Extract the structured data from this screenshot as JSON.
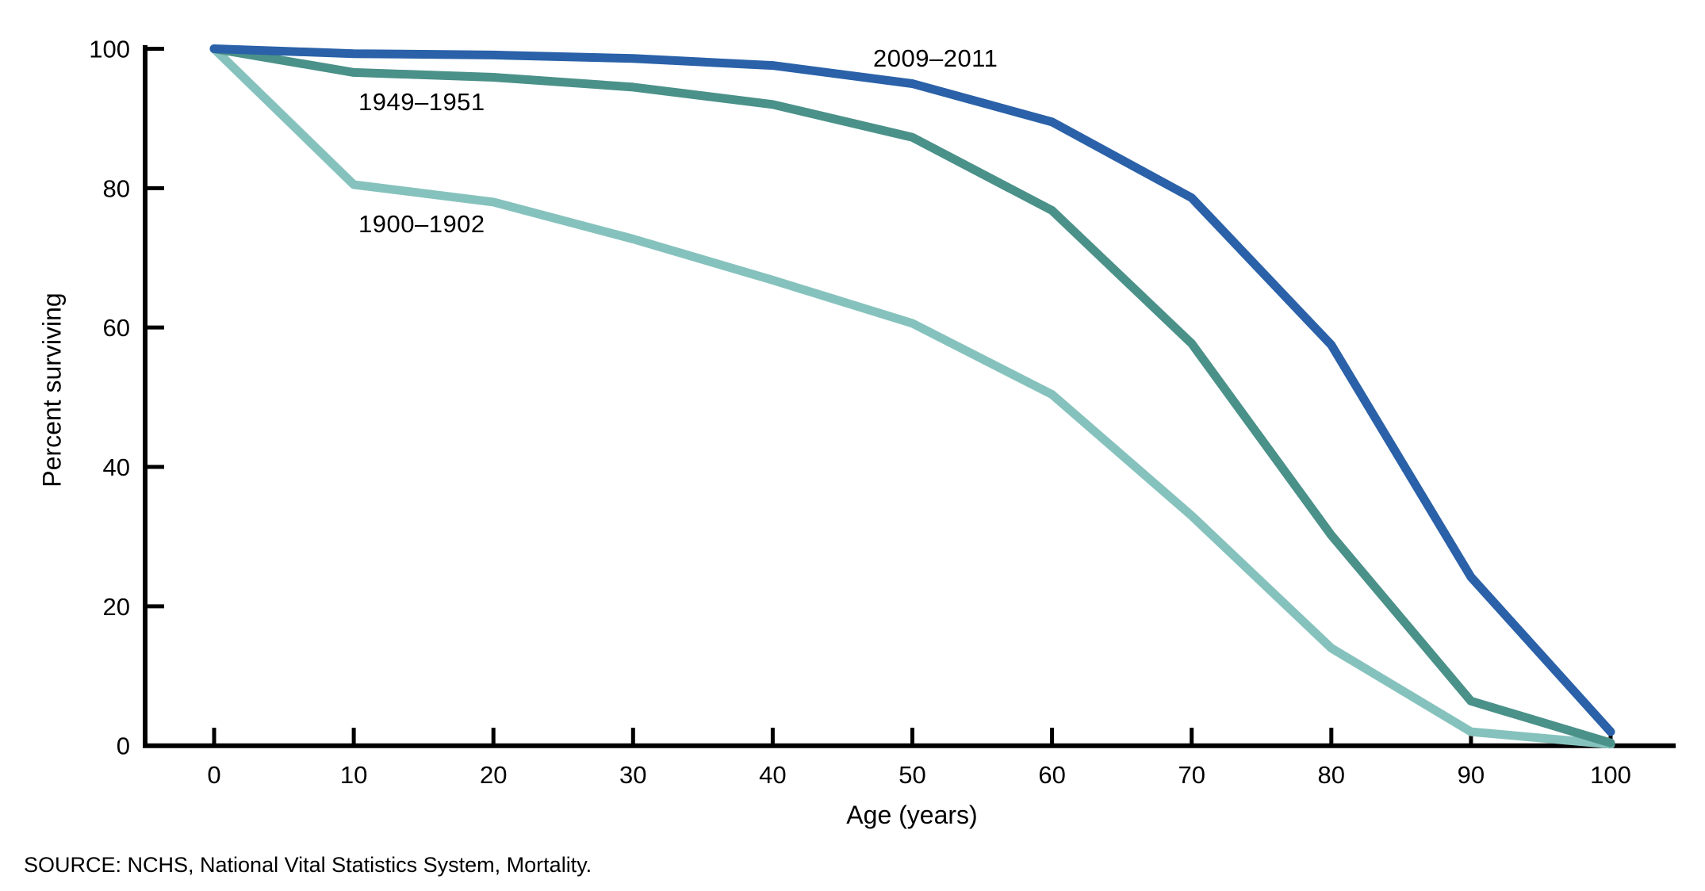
{
  "chart_data": {
    "type": "line",
    "x": [
      0,
      10,
      20,
      30,
      40,
      50,
      60,
      70,
      80,
      90,
      100
    ],
    "xlabel": "Age (years)",
    "ylabel": "Percent surviving",
    "xlim": [
      0,
      100
    ],
    "ylim": [
      0,
      100
    ],
    "x_ticks": [
      0,
      10,
      20,
      30,
      40,
      50,
      60,
      70,
      80,
      90,
      100
    ],
    "y_ticks": [
      0,
      20,
      40,
      60,
      80,
      100
    ],
    "grid": false,
    "legend": "inline-labels-on-chart",
    "series": [
      {
        "name": "2009–2011",
        "color": "#2a61a8",
        "values": [
          100,
          99.3,
          99.1,
          98.6,
          97.6,
          95.0,
          89.5,
          78.6,
          57.5,
          24.2,
          2.0
        ]
      },
      {
        "name": "1949–1951",
        "color": "#4a9189",
        "values": [
          100,
          96.6,
          95.9,
          94.5,
          92.0,
          87.3,
          76.8,
          57.7,
          30.2,
          6.4,
          0.4
        ]
      },
      {
        "name": "1900–1902",
        "color": "#86c2bd",
        "values": [
          100,
          80.5,
          78.0,
          72.7,
          66.8,
          60.6,
          50.4,
          33.0,
          14.0,
          2.0,
          0.2
        ]
      }
    ]
  },
  "source": {
    "text": "SOURCE: NCHS, National Vital Statistics System, Mortality."
  },
  "colors": {
    "axis": "#000000",
    "background": "#ffffff",
    "text": "#000000"
  }
}
